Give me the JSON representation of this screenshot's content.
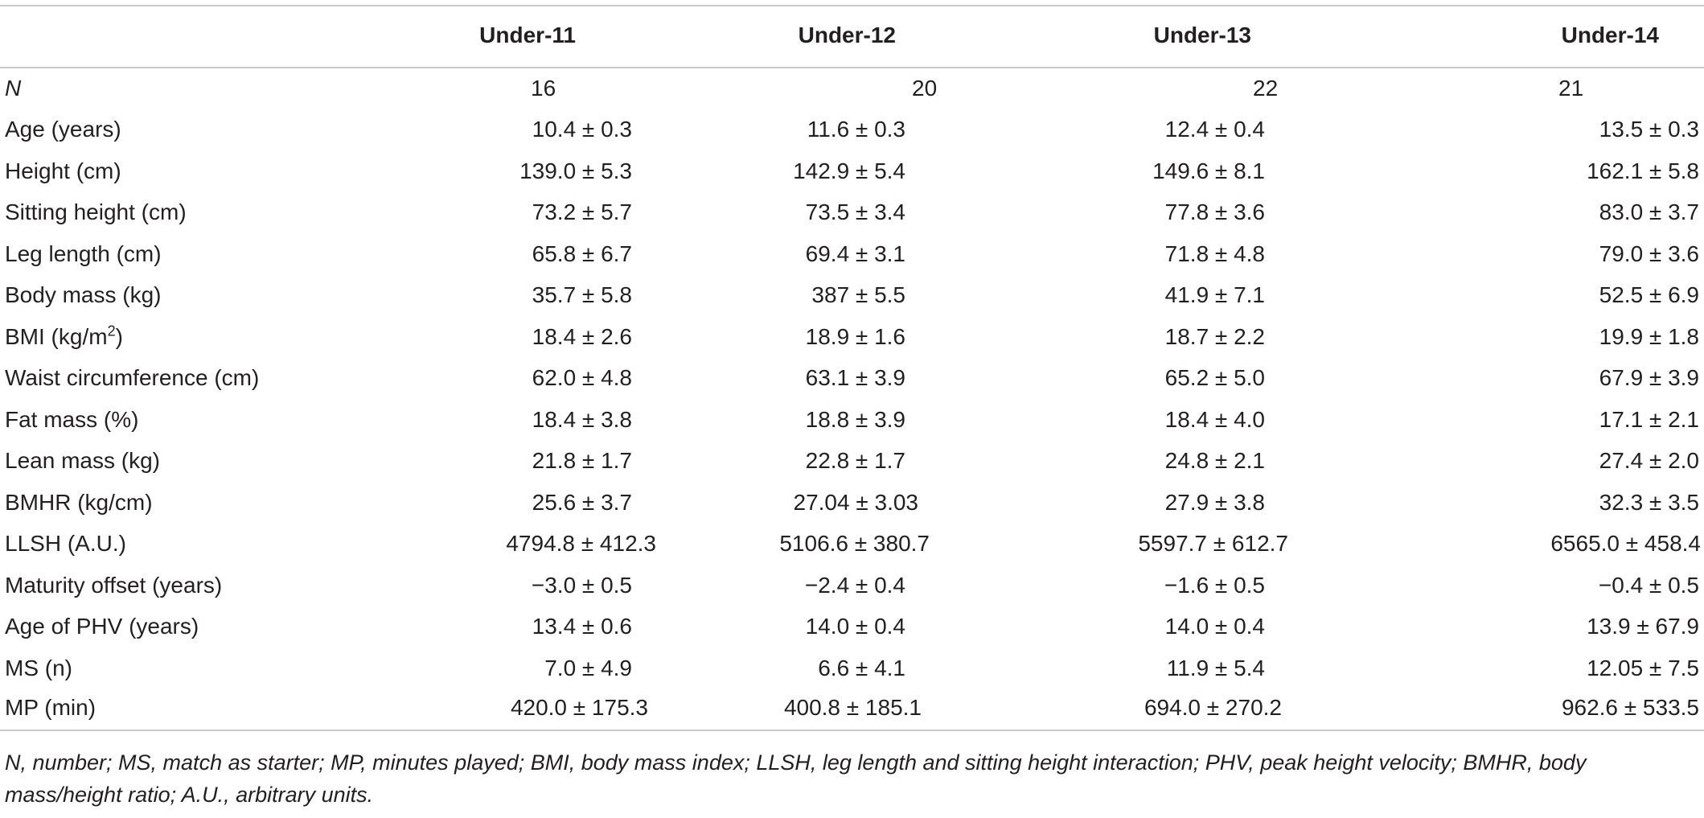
{
  "table": {
    "headers": [
      "",
      "Under-11",
      "Under-12",
      "Under-13",
      "Under-14"
    ],
    "rows": [
      {
        "label": "N",
        "italic": true,
        "values": [
          "16",
          "20",
          "22",
          "21"
        ]
      },
      {
        "label": "Age (years)",
        "values": [
          "10.4 ± 0.3",
          "11.6 ± 0.3",
          "12.4 ± 0.4",
          "13.5 ± 0.3"
        ]
      },
      {
        "label": "Height (cm)",
        "values": [
          "139.0 ± 5.3",
          "142.9 ± 5.4",
          "149.6 ± 8.1",
          "162.1 ± 5.8"
        ]
      },
      {
        "label": "Sitting height (cm)",
        "values": [
          "73.2 ± 5.7",
          "73.5 ± 3.4",
          "77.8 ± 3.6",
          "83.0 ± 3.7"
        ]
      },
      {
        "label": "Leg length (cm)",
        "values": [
          "65.8 ± 6.7",
          "69.4 ± 3.1",
          "71.8 ± 4.8",
          "79.0 ± 3.6"
        ]
      },
      {
        "label": "Body mass (kg)",
        "values": [
          "35.7 ± 5.8",
          "387 ± 5.5",
          "41.9 ± 7.1",
          "52.5 ± 6.9"
        ]
      },
      {
        "label_prefix": "BMI (kg/m",
        "label_sup": "2",
        "label_suffix": ")",
        "values": [
          "18.4 ± 2.6",
          "18.9 ± 1.6",
          "18.7 ± 2.2",
          "19.9 ± 1.8"
        ]
      },
      {
        "label": "Waist circumference (cm)",
        "values": [
          "62.0 ± 4.8",
          "63.1 ± 3.9",
          "65.2 ± 5.0",
          "67.9 ± 3.9"
        ]
      },
      {
        "label": "Fat mass (%)",
        "values": [
          "18.4 ± 3.8",
          "18.8 ± 3.9",
          "18.4 ± 4.0",
          "17.1 ± 2.1"
        ]
      },
      {
        "label": "Lean mass (kg)",
        "values": [
          "21.8 ± 1.7",
          "22.8 ± 1.7",
          "24.8 ± 2.1",
          "27.4 ± 2.0"
        ]
      },
      {
        "label": "BMHR (kg/cm)",
        "values": [
          "25.6 ± 3.7",
          "27.04 ± 3.03",
          "27.9 ± 3.8",
          "32.3 ± 3.5"
        ]
      },
      {
        "label": "LLSH (A.U.)",
        "values": [
          "4794.8 ± 412.3",
          "5106.6 ± 380.7",
          "5597.7 ± 612.7",
          "6565.0 ± 458.4"
        ]
      },
      {
        "label": "Maturity offset (years)",
        "values": [
          "−3.0 ± 0.5",
          "−2.4 ± 0.4",
          "−1.6 ± 0.5",
          "−0.4 ± 0.5"
        ]
      },
      {
        "label": "Age of PHV (years)",
        "values": [
          "13.4 ± 0.6",
          "14.0 ± 0.4",
          "14.0 ± 0.4",
          "13.9 ± 67.9"
        ]
      },
      {
        "label": "MS (n)",
        "values": [
          "7.0 ± 4.9",
          "6.6 ± 4.1",
          "11.9 ± 5.4",
          "12.05 ± 7.5"
        ]
      },
      {
        "label": "MP (min)",
        "values": [
          "420.0 ± 175.3",
          "400.8 ± 185.1",
          "694.0 ± 270.2",
          "962.6 ± 533.5"
        ]
      }
    ]
  },
  "footnote": "N, number; MS, match as starter; MP, minutes played; BMI, body mass index; LLSH, leg length and sitting height interaction; PHV, peak height velocity; BMHR, body mass/height ratio; A.U., arbitrary units."
}
